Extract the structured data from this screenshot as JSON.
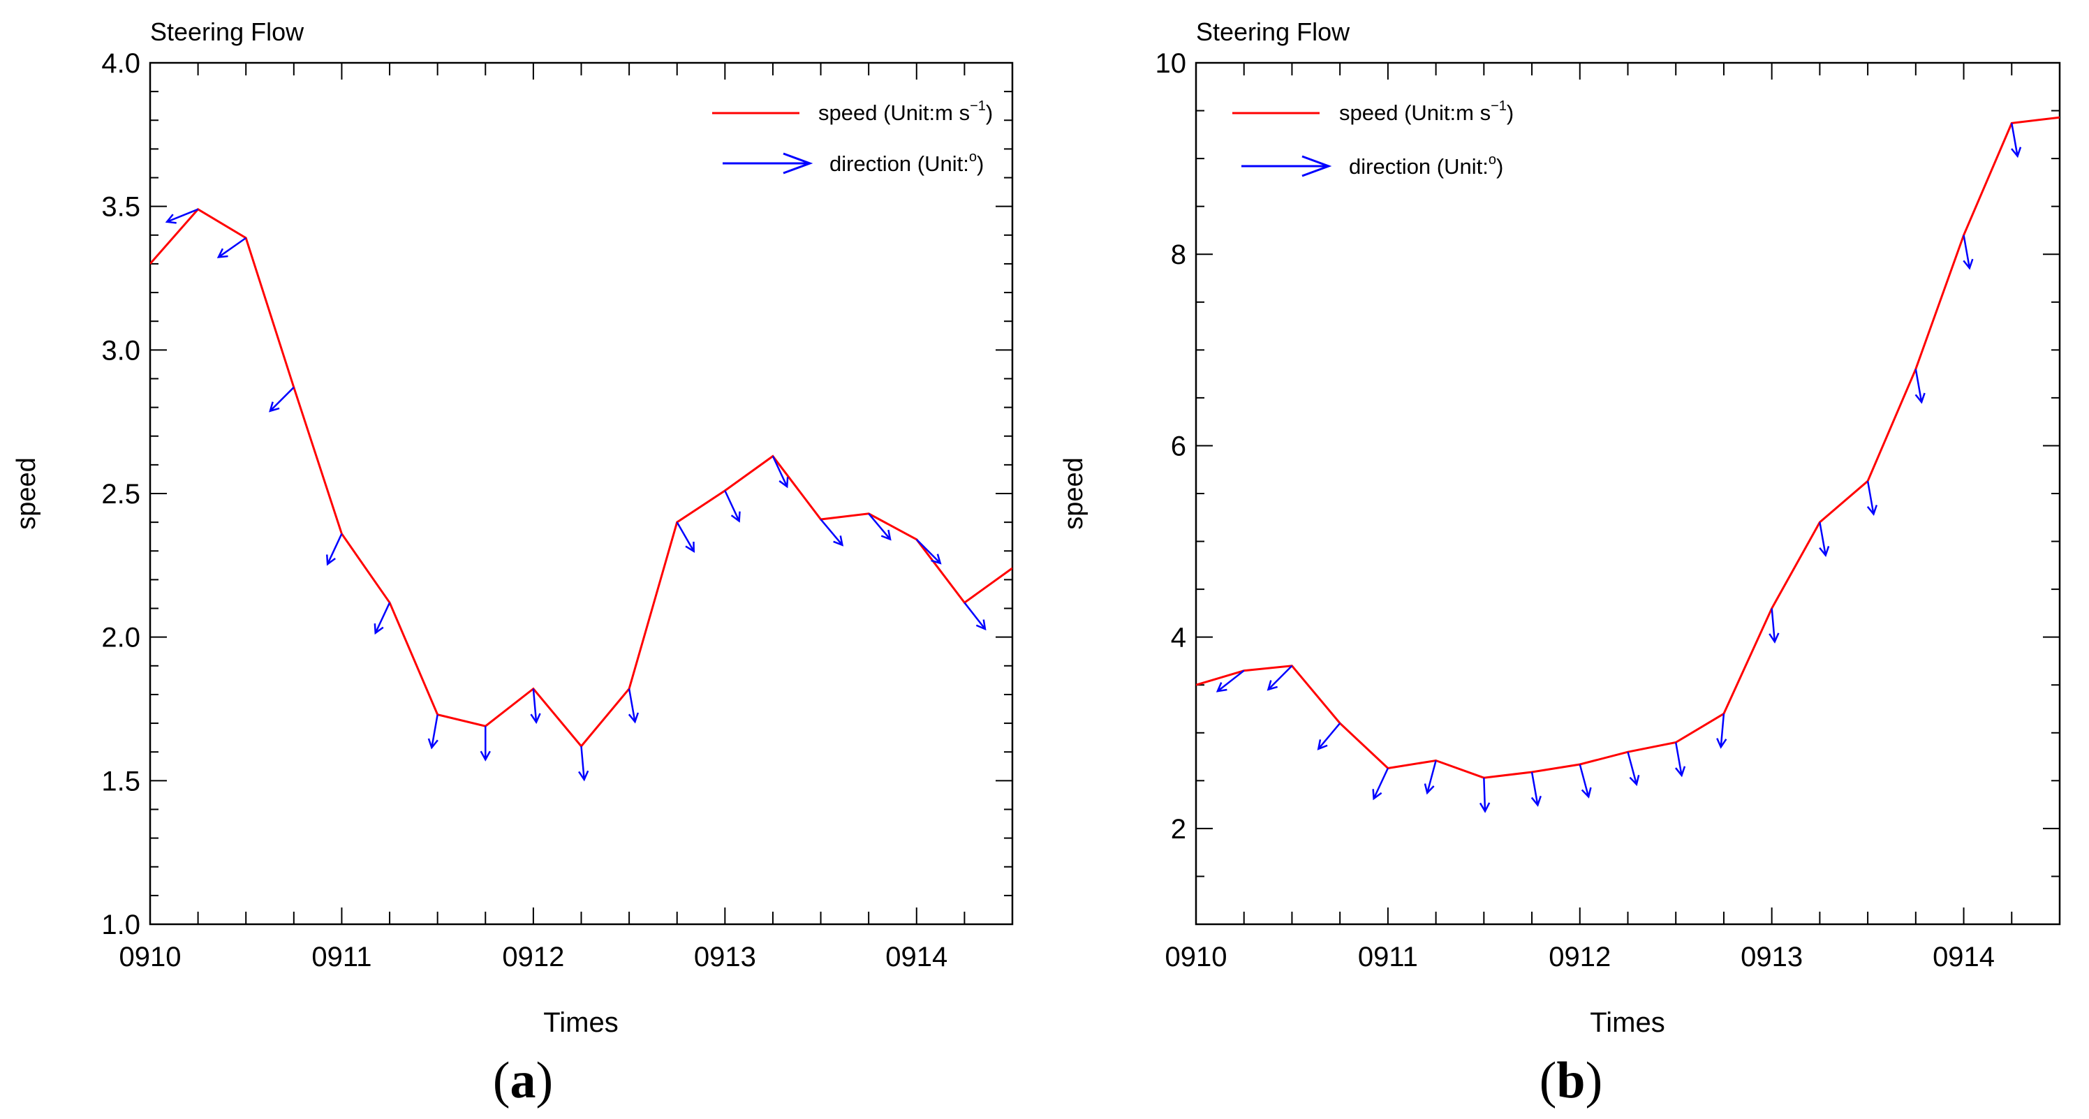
{
  "chart_data": [
    {
      "type": "line",
      "panel_label": "(a)",
      "title": "Steering Flow",
      "xlabel": "Times",
      "ylabel": "speed",
      "xlim": [
        0,
        4.5
      ],
      "ylim": [
        1.0,
        4.0
      ],
      "x_ticks": [
        0,
        1,
        2,
        3,
        4
      ],
      "x_tick_labels": [
        "0910",
        "0911",
        "0912",
        "0913",
        "0914"
      ],
      "y_ticks": [
        1.0,
        1.5,
        2.0,
        2.5,
        3.0,
        3.5,
        4.0
      ],
      "y_tick_labels": [
        "1.0",
        "1.5",
        "2.0",
        "2.5",
        "3.0",
        "3.5",
        "4.0"
      ],
      "y_minor_step": 0.1,
      "legend": {
        "position": "top-right",
        "speed_label": "speed (Unit:m s",
        "speed_sup": "−1",
        "speed_close": ")",
        "direction_label": "direction (Unit:",
        "direction_sup": "o",
        "direction_close": ")"
      },
      "series": [
        {
          "name": "speed",
          "color": "#ff0000",
          "x": [
            0,
            0.25,
            0.5,
            0.75,
            1.0,
            1.25,
            1.5,
            1.75,
            2.0,
            2.25,
            2.5,
            2.75,
            3.0,
            3.25,
            3.5,
            3.75,
            4.0,
            4.25,
            4.5
          ],
          "values": [
            3.3,
            3.49,
            3.39,
            2.87,
            2.36,
            2.12,
            1.73,
            1.69,
            1.82,
            1.62,
            1.82,
            2.4,
            2.51,
            2.63,
            2.41,
            2.43,
            2.34,
            2.12,
            2.24
          ]
        },
        {
          "name": "direction",
          "color": "#0000ff",
          "x": [
            0.25,
            0.5,
            0.75,
            1.0,
            1.25,
            1.5,
            1.75,
            2.0,
            2.25,
            2.5,
            2.75,
            3.0,
            3.25,
            3.5,
            3.75,
            4.0,
            4.25
          ],
          "angles_deg": [
            112,
            125,
            135,
            155,
            155,
            170,
            180,
            185,
            185,
            190,
            210,
            205,
            205,
            220,
            220,
            225,
            218
          ]
        }
      ]
    },
    {
      "type": "line",
      "panel_label": "(b)",
      "title": "Steering Flow",
      "xlabel": "Times",
      "ylabel": "speed",
      "xlim": [
        0,
        4.5
      ],
      "ylim": [
        1,
        10
      ],
      "x_ticks": [
        0,
        1,
        2,
        3,
        4
      ],
      "x_tick_labels": [
        "0910",
        "0911",
        "0912",
        "0913",
        "0914"
      ],
      "y_ticks": [
        2,
        4,
        6,
        8,
        10
      ],
      "y_tick_labels": [
        "2",
        "4",
        "6",
        "8",
        "10"
      ],
      "y_minor_step": 0.5,
      "legend": {
        "position": "top-left",
        "speed_label": "speed (Unit:m s",
        "speed_sup": "−1",
        "speed_close": ")",
        "direction_label": "direction (Unit:",
        "direction_sup": "o",
        "direction_close": ")"
      },
      "series": [
        {
          "name": "speed",
          "color": "#ff0000",
          "x": [
            0,
            0.25,
            0.5,
            0.75,
            1.0,
            1.25,
            1.5,
            1.75,
            2.0,
            2.25,
            2.5,
            2.75,
            3.0,
            3.25,
            3.5,
            3.75,
            4.0,
            4.25,
            4.5
          ],
          "values": [
            3.5,
            3.65,
            3.7,
            3.1,
            2.63,
            2.71,
            2.53,
            2.59,
            2.67,
            2.8,
            2.9,
            3.2,
            4.3,
            5.2,
            5.63,
            6.8,
            8.2,
            9.37,
            9.43
          ]
        },
        {
          "name": "direction",
          "color": "#0000ff",
          "x": [
            0.25,
            0.5,
            0.75,
            1.0,
            1.25,
            1.5,
            1.75,
            2.0,
            2.25,
            2.5,
            2.75,
            3.0,
            3.25,
            3.5,
            3.75,
            4.0,
            4.25
          ],
          "angles_deg": [
            128,
            135,
            140,
            155,
            165,
            182,
            190,
            195,
            195,
            190,
            175,
            185,
            190,
            190,
            190,
            190,
            190
          ]
        }
      ]
    }
  ]
}
